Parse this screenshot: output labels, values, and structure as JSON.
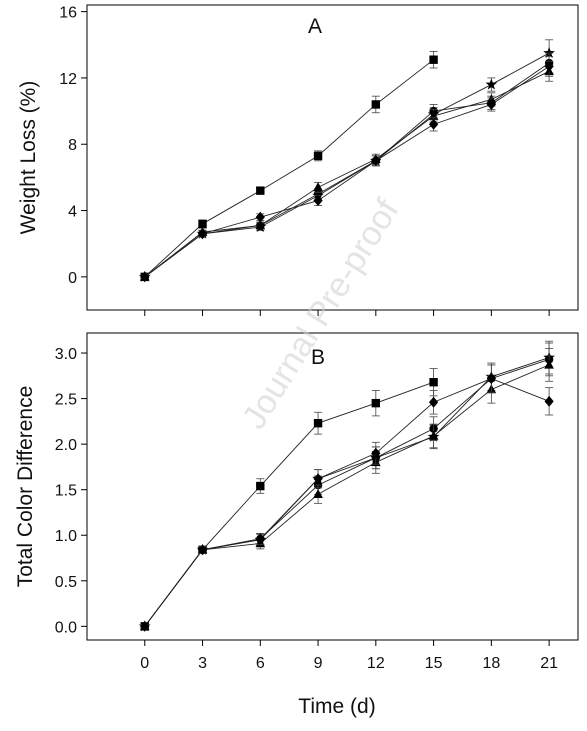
{
  "watermark": "Journal Pre-proof",
  "xlabel": "Time (d)",
  "chart_data": [
    {
      "type": "line",
      "panel_label": "A",
      "ylabel": "Weight Loss (%)",
      "x": [
        0,
        3,
        6,
        9,
        12,
        15,
        18,
        21
      ],
      "xticks": [
        "0",
        "3",
        "6",
        "9",
        "12",
        "15",
        "18",
        "21"
      ],
      "xlim": [
        -3,
        22.5
      ],
      "ylim": [
        -2,
        16.4
      ],
      "yticks": [
        0,
        4,
        8,
        12,
        16
      ],
      "ytick_labels": [
        "0",
        "4",
        "8",
        "12",
        "16"
      ],
      "grid": false,
      "series": [
        {
          "marker": "square",
          "values": [
            0,
            3.2,
            5.2,
            7.3,
            10.4,
            13.1,
            null,
            null
          ],
          "err": [
            0.1,
            0.2,
            0.2,
            0.3,
            0.5,
            0.5,
            null,
            null
          ]
        },
        {
          "marker": "star",
          "values": [
            0,
            2.6,
            3.0,
            4.9,
            7.0,
            9.8,
            11.6,
            13.5
          ],
          "err": [
            0.1,
            0.2,
            0.2,
            0.3,
            0.3,
            0.4,
            0.4,
            0.8
          ]
        },
        {
          "marker": "circle",
          "values": [
            0,
            2.6,
            3.1,
            5.0,
            7.0,
            10.0,
            10.5,
            12.9
          ],
          "err": [
            0.1,
            0.2,
            0.2,
            0.3,
            0.3,
            0.4,
            0.4,
            0.6
          ]
        },
        {
          "marker": "triangle",
          "values": [
            0,
            2.7,
            3.1,
            5.4,
            7.1,
            9.7,
            10.7,
            12.4
          ],
          "err": [
            0.1,
            0.2,
            0.2,
            0.3,
            0.3,
            0.4,
            0.4,
            0.6
          ]
        },
        {
          "marker": "diamond",
          "values": [
            0,
            2.6,
            3.6,
            4.6,
            7.0,
            9.2,
            10.4,
            12.7
          ],
          "err": [
            0.1,
            0.2,
            0.2,
            0.3,
            0.3,
            0.4,
            0.4,
            0.6
          ]
        }
      ]
    },
    {
      "type": "line",
      "panel_label": "B",
      "ylabel": "Total  Color Difference",
      "x": [
        0,
        3,
        6,
        9,
        12,
        15,
        18,
        21
      ],
      "xticks": [
        "0",
        "3",
        "6",
        "9",
        "12",
        "15",
        "18",
        "21"
      ],
      "xlim": [
        -3,
        22.5
      ],
      "ylim": [
        -0.15,
        3.22
      ],
      "yticks": [
        0,
        0.5,
        1.0,
        1.5,
        2.0,
        2.5,
        3.0
      ],
      "ytick_labels": [
        "0.0",
        "0.5",
        "1.0",
        "1.5",
        "2.0",
        "2.5",
        "3.0"
      ],
      "grid": false,
      "series": [
        {
          "marker": "square",
          "values": [
            0,
            0.84,
            1.54,
            2.23,
            2.45,
            2.68,
            null,
            null
          ],
          "err": [
            0.02,
            0.04,
            0.08,
            0.12,
            0.14,
            0.15,
            null,
            null
          ]
        },
        {
          "marker": "star",
          "values": [
            0,
            0.84,
            0.95,
            1.62,
            1.85,
            2.08,
            2.74,
            2.95
          ],
          "err": [
            0.02,
            0.04,
            0.06,
            0.1,
            0.12,
            0.13,
            0.15,
            0.18
          ]
        },
        {
          "marker": "circle",
          "values": [
            0,
            0.84,
            0.96,
            1.55,
            1.85,
            2.17,
            2.72,
            2.93
          ],
          "err": [
            0.02,
            0.04,
            0.06,
            0.1,
            0.12,
            0.13,
            0.15,
            0.18
          ]
        },
        {
          "marker": "triangle",
          "values": [
            0,
            0.84,
            0.91,
            1.45,
            1.8,
            2.09,
            2.6,
            2.87
          ],
          "err": [
            0.02,
            0.04,
            0.06,
            0.1,
            0.12,
            0.13,
            0.15,
            0.18
          ]
        },
        {
          "marker": "diamond",
          "values": [
            0,
            0.84,
            0.96,
            1.62,
            1.9,
            2.46,
            2.72,
            2.47
          ],
          "err": [
            0.02,
            0.04,
            0.06,
            0.1,
            0.12,
            0.13,
            0.15,
            0.15
          ]
        }
      ]
    }
  ]
}
